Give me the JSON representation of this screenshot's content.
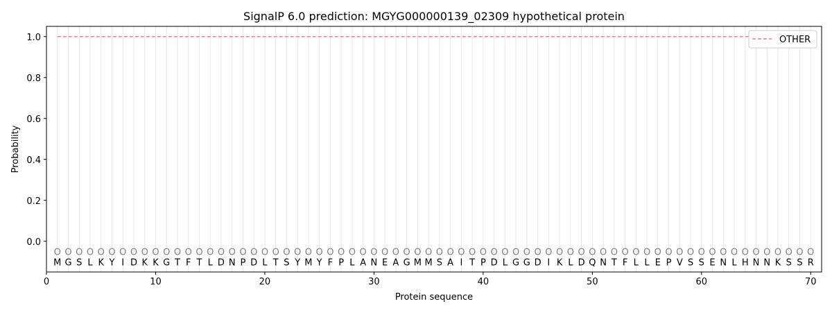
{
  "chart_data": {
    "type": "line",
    "title": "SignalP 6.0 prediction: MGYG000000139_02309 hypothetical protein",
    "xlabel": "Protein sequence",
    "ylabel": "Probability",
    "xlim": [
      0,
      71
    ],
    "ylim": [
      -0.15,
      1.05
    ],
    "xticks": [
      0,
      10,
      20,
      30,
      40,
      50,
      60,
      70
    ],
    "yticks": [
      0.0,
      0.2,
      0.4,
      0.6,
      0.8,
      1.0
    ],
    "ytick_labels": [
      "0.0",
      "0.2",
      "0.4",
      "0.6",
      "0.8",
      "1.0"
    ],
    "grid": "vertical lines at each residue",
    "legend_position": "top-right",
    "sequence": "MGSLKYIDKKGTFTLDNPDLTSYMYFPLANEAGMMSAITPDLGGDIKLDQNTFLLEPVSSENLHNNKSSR",
    "region_labels": "OOOOOOOOOOOOOOOOOOOOOOOOOOOOOOOOOOOOOOOOOOOOOOOOOOOOOOOOOOOOOOOOOOOOOO",
    "series": [
      {
        "name": "OTHER",
        "color": "#f08080",
        "style": "dashed",
        "x_start": 1,
        "x_end": 70,
        "value": 1.0
      }
    ]
  }
}
